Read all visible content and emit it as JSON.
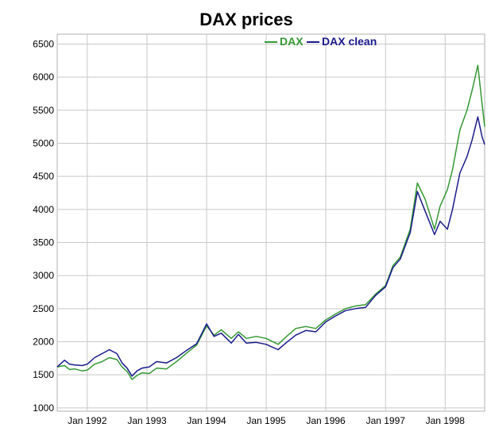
{
  "chart_data": {
    "type": "line",
    "title": "DAX prices",
    "xlabel": "",
    "ylabel": "",
    "xlim": [
      "1991-07-01",
      "1998-08-31"
    ],
    "ylim": [
      950,
      6650
    ],
    "yticks": [
      1000,
      1500,
      2000,
      2500,
      3000,
      3500,
      4000,
      4500,
      5000,
      5500,
      6000,
      6500
    ],
    "xticks": [
      {
        "date": "1992-01-01",
        "label": "Jan 1992"
      },
      {
        "date": "1993-01-01",
        "label": "Jan 1993"
      },
      {
        "date": "1994-01-01",
        "label": "Jan 1994"
      },
      {
        "date": "1995-01-01",
        "label": "Jan 1995"
      },
      {
        "date": "1996-01-01",
        "label": "Jan 1996"
      },
      {
        "date": "1997-01-01",
        "label": "Jan 1997"
      },
      {
        "date": "1998-01-01",
        "label": "Jan 1998"
      }
    ],
    "grid": true,
    "legend": {
      "placement": "top-right"
    },
    "series": [
      {
        "name": "DAX",
        "color": "#339933",
        "points": [
          [
            "1991-07-01",
            1620
          ],
          [
            "1991-08-15",
            1640
          ],
          [
            "1991-09-15",
            1580
          ],
          [
            "1991-10-15",
            1590
          ],
          [
            "1991-12-01",
            1560
          ],
          [
            "1992-01-01",
            1570
          ],
          [
            "1992-02-15",
            1660
          ],
          [
            "1992-04-01",
            1700
          ],
          [
            "1992-05-15",
            1760
          ],
          [
            "1992-07-01",
            1730
          ],
          [
            "1992-08-01",
            1620
          ],
          [
            "1992-09-01",
            1550
          ],
          [
            "1992-10-01",
            1430
          ],
          [
            "1992-11-01",
            1490
          ],
          [
            "1992-12-01",
            1530
          ],
          [
            "1993-01-15",
            1520
          ],
          [
            "1993-03-01",
            1600
          ],
          [
            "1993-05-01",
            1590
          ],
          [
            "1993-07-01",
            1700
          ],
          [
            "1993-09-01",
            1830
          ],
          [
            "1993-11-01",
            1950
          ],
          [
            "1994-01-01",
            2240
          ],
          [
            "1994-02-15",
            2100
          ],
          [
            "1994-04-01",
            2180
          ],
          [
            "1994-06-01",
            2050
          ],
          [
            "1994-07-15",
            2150
          ],
          [
            "1994-09-01",
            2050
          ],
          [
            "1994-11-01",
            2080
          ],
          [
            "1995-01-01",
            2050
          ],
          [
            "1995-03-15",
            1960
          ],
          [
            "1995-05-01",
            2070
          ],
          [
            "1995-07-01",
            2200
          ],
          [
            "1995-09-01",
            2230
          ],
          [
            "1995-11-01",
            2200
          ],
          [
            "1996-01-01",
            2330
          ],
          [
            "1996-03-01",
            2420
          ],
          [
            "1996-05-01",
            2500
          ],
          [
            "1996-07-01",
            2540
          ],
          [
            "1996-09-01",
            2560
          ],
          [
            "1996-11-01",
            2720
          ],
          [
            "1997-01-01",
            2850
          ],
          [
            "1997-02-15",
            3150
          ],
          [
            "1997-04-01",
            3280
          ],
          [
            "1997-06-01",
            3700
          ],
          [
            "1997-07-15",
            4400
          ],
          [
            "1997-09-01",
            4150
          ],
          [
            "1997-10-28",
            3700
          ],
          [
            "1997-12-01",
            4050
          ],
          [
            "1998-01-15",
            4300
          ],
          [
            "1998-02-15",
            4600
          ],
          [
            "1998-04-01",
            5200
          ],
          [
            "1998-05-15",
            5500
          ],
          [
            "1998-06-15",
            5800
          ],
          [
            "1998-07-20",
            6180
          ],
          [
            "1998-08-15",
            5600
          ],
          [
            "1998-08-31",
            5250
          ]
        ]
      },
      {
        "name": "DAX clean",
        "color": "#1a1a8c",
        "points": [
          [
            "1991-07-01",
            1620
          ],
          [
            "1991-08-15",
            1720
          ],
          [
            "1991-09-15",
            1660
          ],
          [
            "1991-10-15",
            1650
          ],
          [
            "1991-12-01",
            1640
          ],
          [
            "1992-01-01",
            1660
          ],
          [
            "1992-02-15",
            1760
          ],
          [
            "1992-04-01",
            1820
          ],
          [
            "1992-05-15",
            1880
          ],
          [
            "1992-07-01",
            1820
          ],
          [
            "1992-08-01",
            1680
          ],
          [
            "1992-09-01",
            1600
          ],
          [
            "1992-10-01",
            1480
          ],
          [
            "1992-11-01",
            1560
          ],
          [
            "1992-12-01",
            1600
          ],
          [
            "1993-01-15",
            1620
          ],
          [
            "1993-03-01",
            1700
          ],
          [
            "1993-05-01",
            1680
          ],
          [
            "1993-07-01",
            1760
          ],
          [
            "1993-09-01",
            1870
          ],
          [
            "1993-11-01",
            1970
          ],
          [
            "1994-01-01",
            2270
          ],
          [
            "1994-02-15",
            2080
          ],
          [
            "1994-04-01",
            2130
          ],
          [
            "1994-06-01",
            1980
          ],
          [
            "1994-07-15",
            2110
          ],
          [
            "1994-09-01",
            1980
          ],
          [
            "1994-11-01",
            1990
          ],
          [
            "1995-01-01",
            1960
          ],
          [
            "1995-03-15",
            1880
          ],
          [
            "1995-05-01",
            1980
          ],
          [
            "1995-07-01",
            2100
          ],
          [
            "1995-09-01",
            2170
          ],
          [
            "1995-11-01",
            2150
          ],
          [
            "1996-01-01",
            2300
          ],
          [
            "1996-03-01",
            2390
          ],
          [
            "1996-05-01",
            2470
          ],
          [
            "1996-07-01",
            2500
          ],
          [
            "1996-09-01",
            2520
          ],
          [
            "1996-11-01",
            2700
          ],
          [
            "1997-01-01",
            2830
          ],
          [
            "1997-02-15",
            3120
          ],
          [
            "1997-04-01",
            3250
          ],
          [
            "1997-06-01",
            3650
          ],
          [
            "1997-07-15",
            4270
          ],
          [
            "1997-09-01",
            3970
          ],
          [
            "1997-10-28",
            3620
          ],
          [
            "1997-12-01",
            3820
          ],
          [
            "1998-01-15",
            3700
          ],
          [
            "1998-02-15",
            4000
          ],
          [
            "1998-04-01",
            4550
          ],
          [
            "1998-05-15",
            4800
          ],
          [
            "1998-06-15",
            5050
          ],
          [
            "1998-07-20",
            5400
          ],
          [
            "1998-08-15",
            5100
          ],
          [
            "1998-08-31",
            4980
          ]
        ]
      }
    ]
  }
}
